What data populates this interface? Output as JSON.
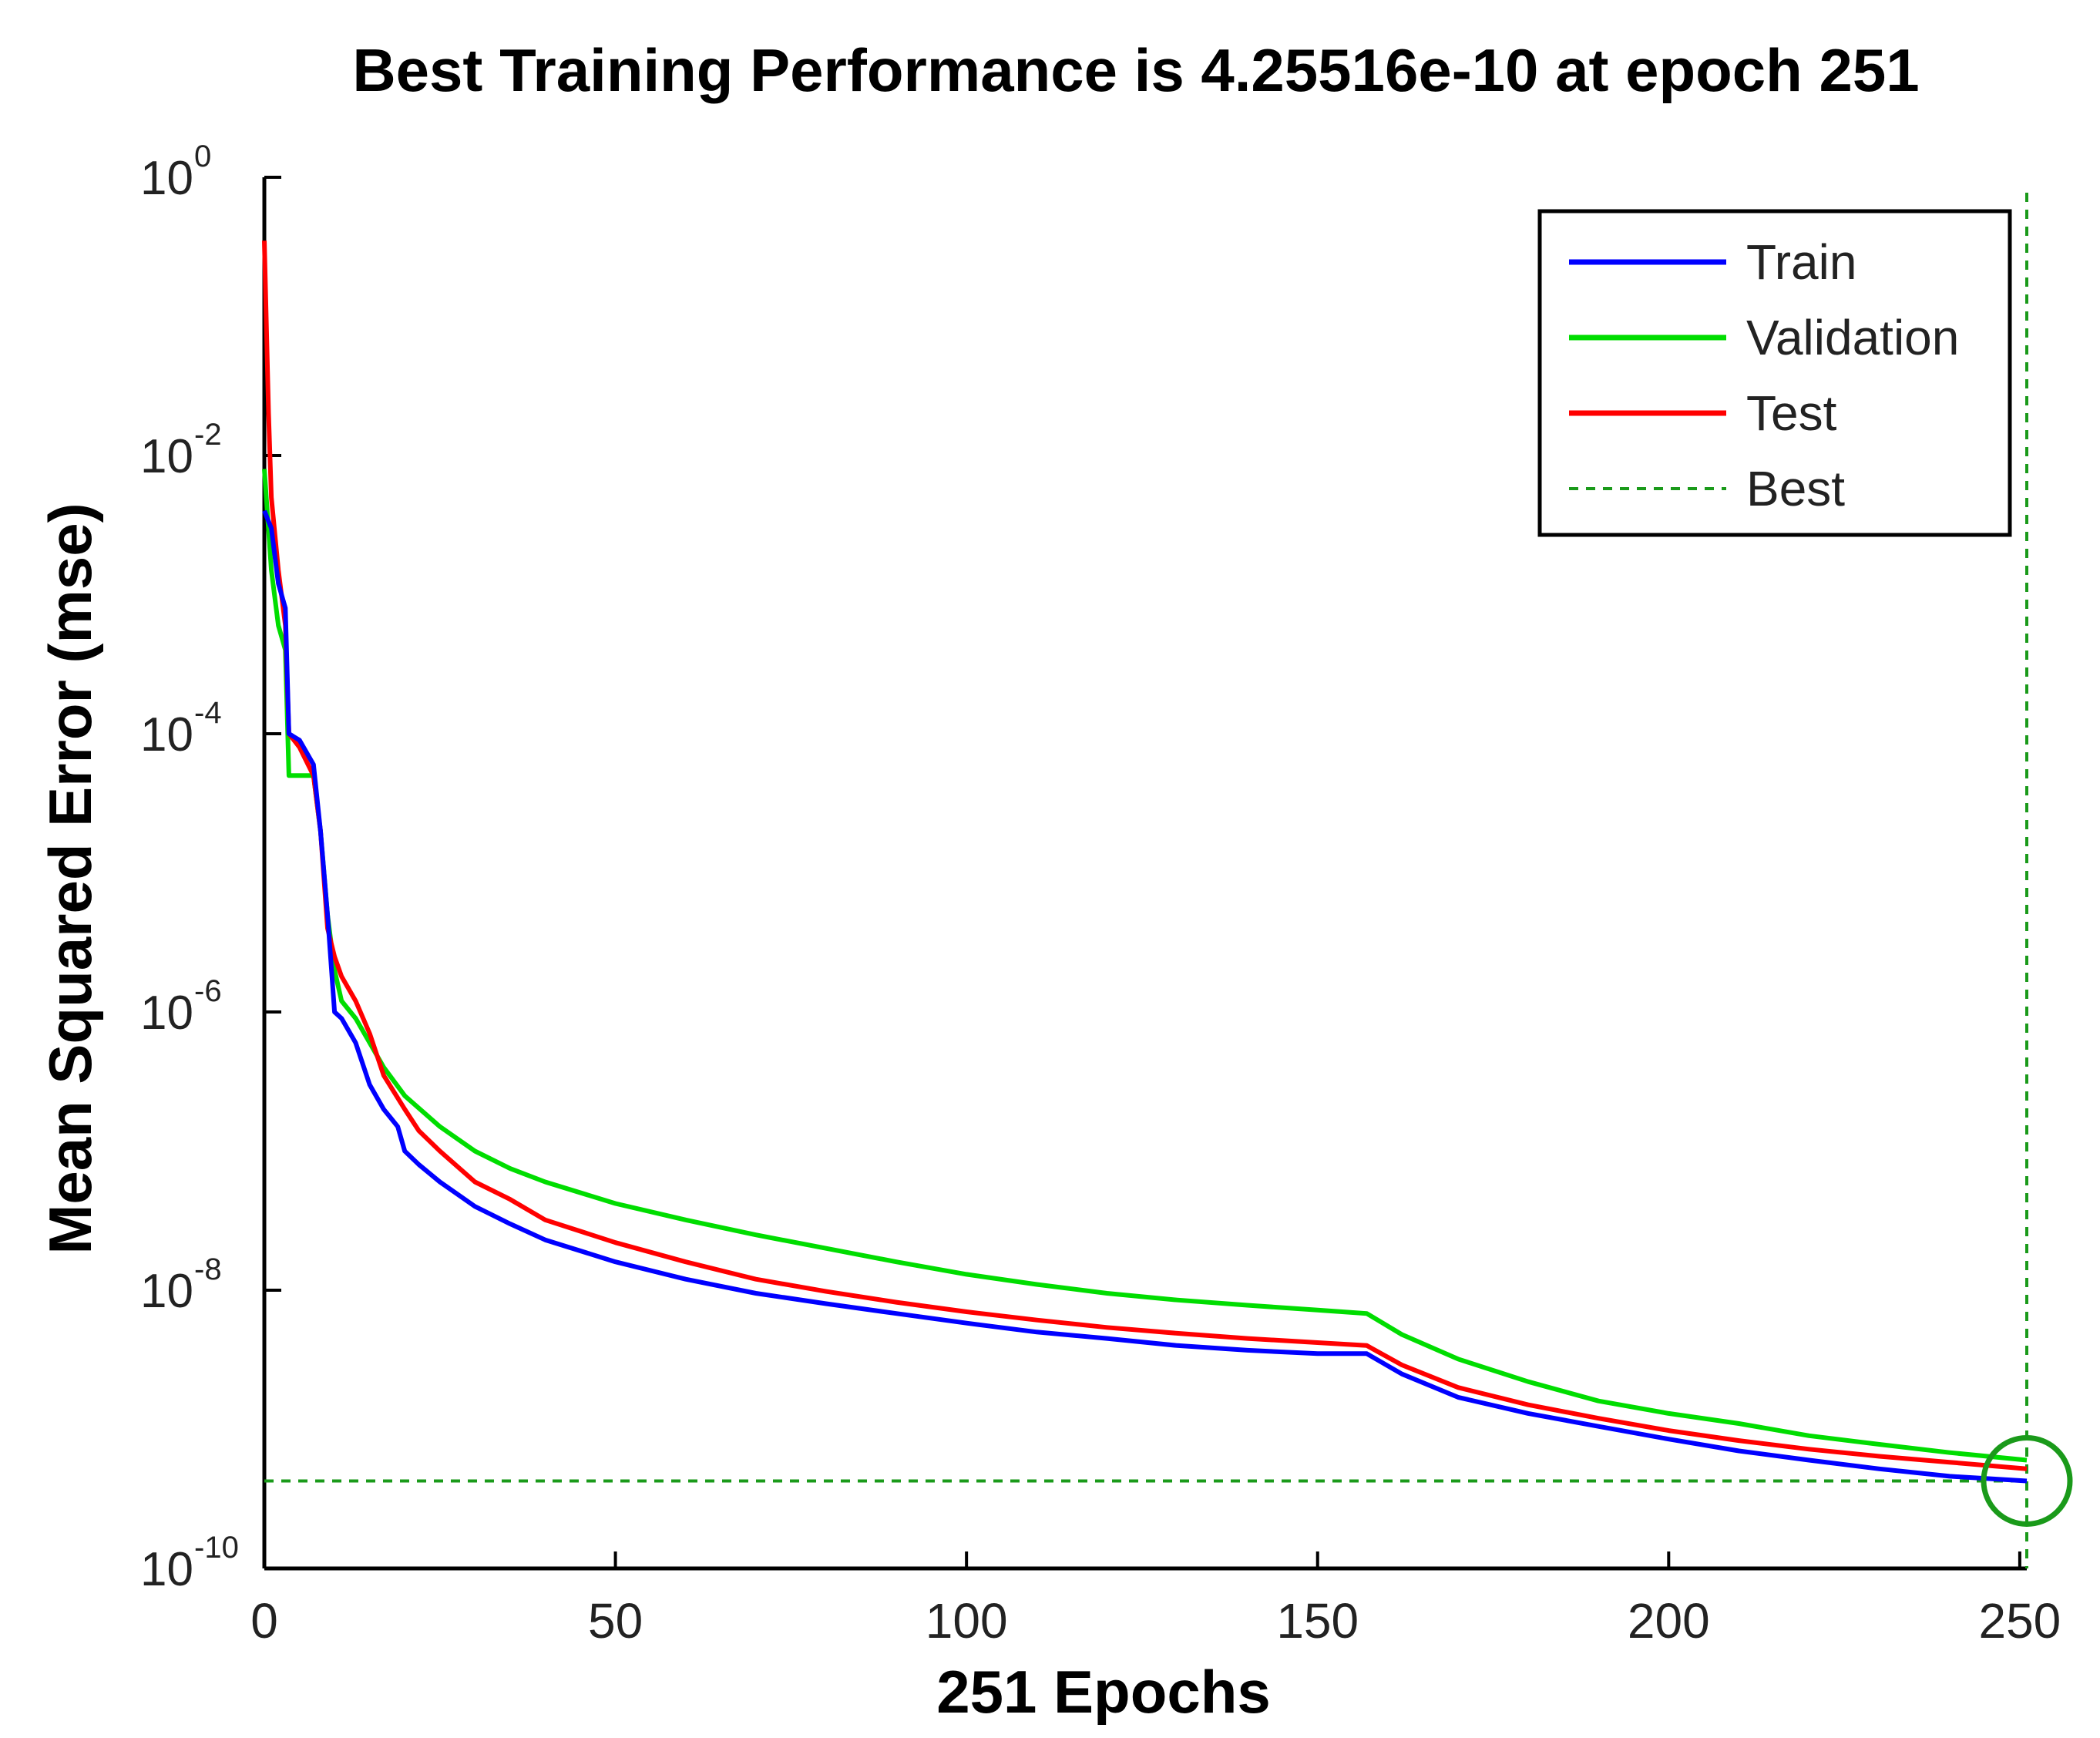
{
  "chart_data": {
    "type": "line",
    "title": "Best Training Performance is 4.25516e-10 at epoch 251",
    "xlabel": "251 Epochs",
    "ylabel": "Mean Squared Error  (mse)",
    "yscale": "log",
    "xlim": [
      0,
      251
    ],
    "ylim": [
      1e-10,
      1
    ],
    "x_ticks": [
      0,
      50,
      100,
      150,
      200,
      250
    ],
    "x_tick_labels": [
      "0",
      "50",
      "100",
      "150",
      "200",
      "250"
    ],
    "y_ticks": [
      {
        "value": 1,
        "base": "10",
        "exp": "0"
      },
      {
        "value": 0.01,
        "base": "10",
        "exp": "-2"
      },
      {
        "value": 0.0001,
        "base": "10",
        "exp": "-4"
      },
      {
        "value": 1e-06,
        "base": "10",
        "exp": "-6"
      },
      {
        "value": 1e-08,
        "base": "10",
        "exp": "-8"
      },
      {
        "value": 1e-10,
        "base": "10",
        "exp": "-10"
      }
    ],
    "legend_position": "top-right",
    "best": {
      "epoch": 251,
      "value": 4.25516e-10,
      "color": "#1a9a1a",
      "legend": "Best"
    },
    "series": [
      {
        "name": "Train",
        "color": "#0000ff",
        "points": [
          [
            0,
            0.004
          ],
          [
            1,
            0.003
          ],
          [
            2,
            0.0012
          ],
          [
            3,
            0.0008
          ],
          [
            3.5,
            0.0001
          ],
          [
            5,
            9e-05
          ],
          [
            7,
            6e-05
          ],
          [
            8,
            2e-05
          ],
          [
            9,
            5e-06
          ],
          [
            10,
            1e-06
          ],
          [
            11,
            9e-07
          ],
          [
            13,
            6e-07
          ],
          [
            15,
            3e-07
          ],
          [
            17,
            2e-07
          ],
          [
            19,
            1.5e-07
          ],
          [
            20,
            1e-07
          ],
          [
            22,
            8e-08
          ],
          [
            25,
            6e-08
          ],
          [
            30,
            4e-08
          ],
          [
            35,
            3e-08
          ],
          [
            40,
            2.3e-08
          ],
          [
            50,
            1.6e-08
          ],
          [
            60,
            1.2e-08
          ],
          [
            70,
            9.5e-09
          ],
          [
            80,
            8e-09
          ],
          [
            90,
            6.8e-09
          ],
          [
            100,
            5.8e-09
          ],
          [
            110,
            5e-09
          ],
          [
            120,
            4.5e-09
          ],
          [
            130,
            4e-09
          ],
          [
            140,
            3.7e-09
          ],
          [
            150,
            3.5e-09
          ],
          [
            157,
            3.5e-09
          ],
          [
            162,
            2.5e-09
          ],
          [
            170,
            1.7e-09
          ],
          [
            180,
            1.3e-09
          ],
          [
            190,
            1.05e-09
          ],
          [
            200,
            8.5e-10
          ],
          [
            210,
            7e-10
          ],
          [
            220,
            6e-10
          ],
          [
            230,
            5.2e-10
          ],
          [
            240,
            4.6e-10
          ],
          [
            251,
            4.25516e-10
          ]
        ]
      },
      {
        "name": "Validation",
        "color": "#00dd00",
        "points": [
          [
            0,
            0.008
          ],
          [
            1,
            0.0015
          ],
          [
            2,
            0.0006
          ],
          [
            3,
            0.0004
          ],
          [
            3.5,
            5e-05
          ],
          [
            5,
            5e-05
          ],
          [
            7,
            5e-05
          ],
          [
            8,
            2e-05
          ],
          [
            9,
            5e-06
          ],
          [
            10,
            2e-06
          ],
          [
            11,
            1.2e-06
          ],
          [
            13,
            9e-07
          ],
          [
            15,
            6e-07
          ],
          [
            17,
            4e-07
          ],
          [
            20,
            2.5e-07
          ],
          [
            25,
            1.5e-07
          ],
          [
            30,
            1e-07
          ],
          [
            35,
            7.5e-08
          ],
          [
            40,
            6e-08
          ],
          [
            50,
            4.2e-08
          ],
          [
            60,
            3.2e-08
          ],
          [
            70,
            2.5e-08
          ],
          [
            80,
            2e-08
          ],
          [
            90,
            1.6e-08
          ],
          [
            100,
            1.3e-08
          ],
          [
            110,
            1.1e-08
          ],
          [
            120,
            9.5e-09
          ],
          [
            130,
            8.5e-09
          ],
          [
            140,
            7.8e-09
          ],
          [
            150,
            7.2e-09
          ],
          [
            157,
            6.8e-09
          ],
          [
            162,
            4.8e-09
          ],
          [
            170,
            3.2e-09
          ],
          [
            180,
            2.2e-09
          ],
          [
            190,
            1.6e-09
          ],
          [
            200,
            1.3e-09
          ],
          [
            210,
            1.1e-09
          ],
          [
            220,
            9e-10
          ],
          [
            230,
            7.8e-10
          ],
          [
            240,
            6.8e-10
          ],
          [
            251,
            6e-10
          ]
        ]
      },
      {
        "name": "Test",
        "color": "#ff0000",
        "points": [
          [
            0,
            0.35
          ],
          [
            0.6,
            0.02
          ],
          [
            1,
            0.005
          ],
          [
            2,
            0.0015
          ],
          [
            3,
            0.0006
          ],
          [
            3.5,
            0.0001
          ],
          [
            5,
            8e-05
          ],
          [
            7,
            5e-05
          ],
          [
            8,
            2e-05
          ],
          [
            9,
            4e-06
          ],
          [
            10,
            2.5e-06
          ],
          [
            11,
            1.8e-06
          ],
          [
            13,
            1.2e-06
          ],
          [
            15,
            7e-07
          ],
          [
            17,
            3.5e-07
          ],
          [
            20,
            2e-07
          ],
          [
            22,
            1.4e-07
          ],
          [
            25,
            1e-07
          ],
          [
            30,
            6e-08
          ],
          [
            35,
            4.5e-08
          ],
          [
            40,
            3.2e-08
          ],
          [
            50,
            2.2e-08
          ],
          [
            60,
            1.6e-08
          ],
          [
            70,
            1.2e-08
          ],
          [
            80,
            9.8e-09
          ],
          [
            90,
            8.2e-09
          ],
          [
            100,
            7e-09
          ],
          [
            110,
            6.1e-09
          ],
          [
            120,
            5.4e-09
          ],
          [
            130,
            4.9e-09
          ],
          [
            140,
            4.5e-09
          ],
          [
            150,
            4.2e-09
          ],
          [
            157,
            4e-09
          ],
          [
            162,
            2.9e-09
          ],
          [
            170,
            2e-09
          ],
          [
            180,
            1.5e-09
          ],
          [
            190,
            1.2e-09
          ],
          [
            200,
            9.8e-10
          ],
          [
            210,
            8.3e-10
          ],
          [
            220,
            7.2e-10
          ],
          [
            230,
            6.4e-10
          ],
          [
            240,
            5.8e-10
          ],
          [
            251,
            5.2e-10
          ]
        ]
      }
    ]
  }
}
